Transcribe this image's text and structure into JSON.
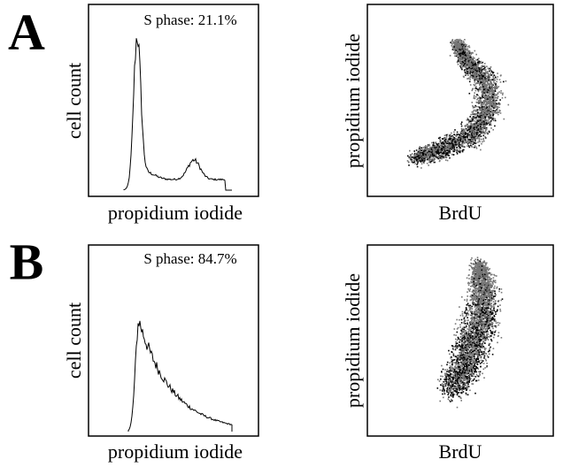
{
  "panels": [
    {
      "label": "A",
      "histogram": {
        "annotation": "S phase: 21.1%",
        "y_label": "cell count",
        "x_label": "propidium iodide"
      },
      "scatter": {
        "y_label": "propidium iodide",
        "x_label": "BrdU"
      }
    },
    {
      "label": "B",
      "histogram": {
        "annotation": "S phase: 84.7%",
        "y_label": "cell count",
        "x_label": "propidium iodide"
      },
      "scatter": {
        "y_label": "propidium iodide",
        "x_label": "BrdU"
      }
    }
  ]
}
